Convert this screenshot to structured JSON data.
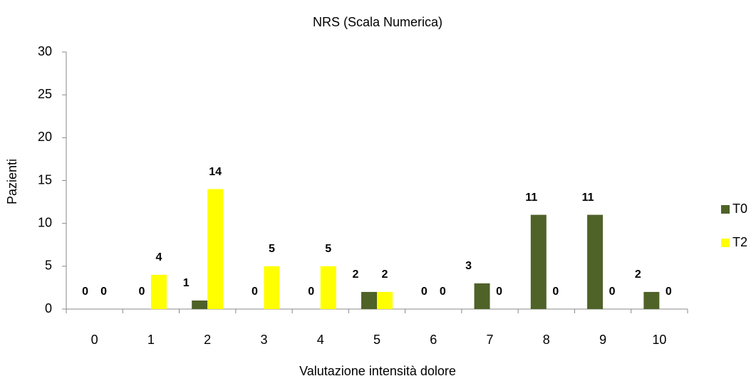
{
  "chart_data": {
    "type": "bar",
    "title": "NRS (Scala Numerica)",
    "x_label": "Valutazione intensità dolore",
    "y_label": "Pazienti",
    "categories": [
      "0",
      "1",
      "2",
      "3",
      "4",
      "5",
      "6",
      "7",
      "8",
      "9",
      "10"
    ],
    "series": [
      {
        "name": "T0",
        "color": "#4f6228",
        "values": [
          0,
          0,
          1,
          0,
          0,
          2,
          0,
          3,
          11,
          11,
          2
        ]
      },
      {
        "name": "T2",
        "color": "#ffff00",
        "values": [
          0,
          4,
          14,
          5,
          5,
          2,
          0,
          0,
          0,
          0,
          0
        ]
      }
    ],
    "ylim": [
      0,
      30
    ],
    "yticks": [
      0,
      5,
      10,
      15,
      20,
      25,
      30
    ],
    "grid": false,
    "legend": "right"
  }
}
